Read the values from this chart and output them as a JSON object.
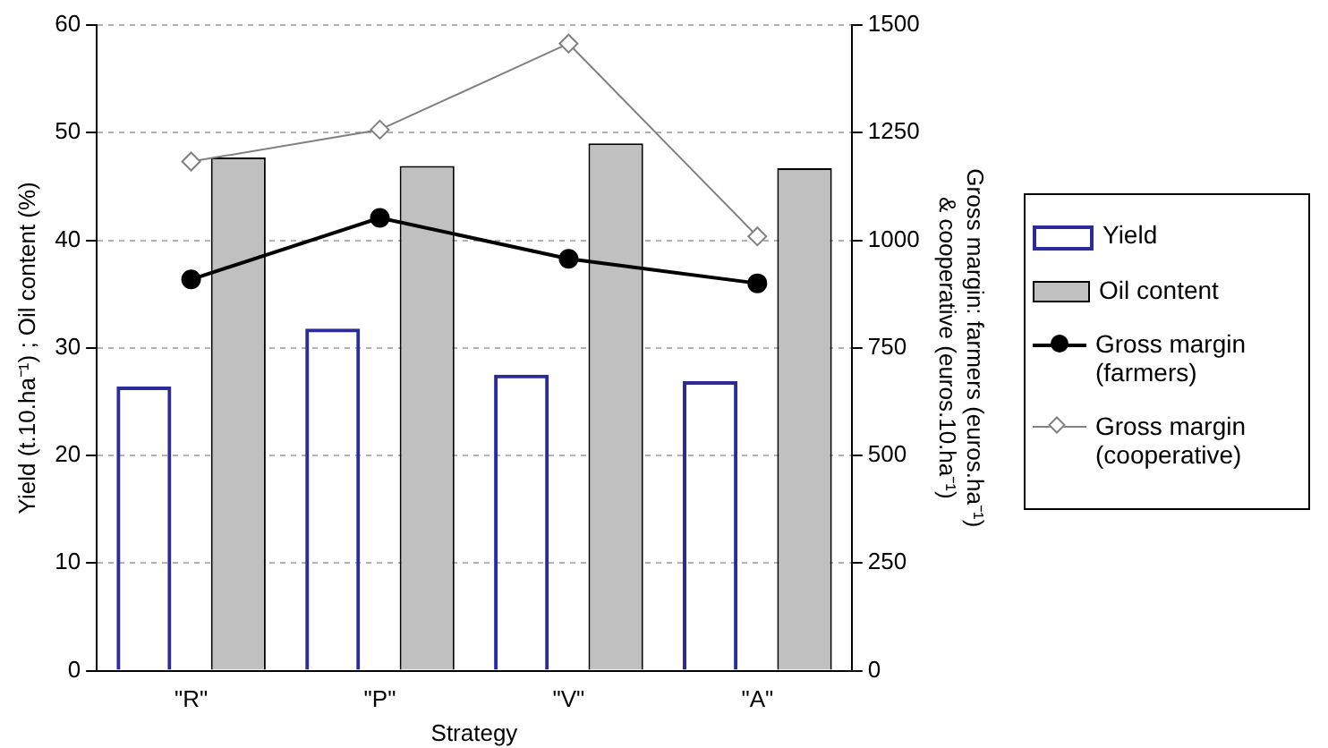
{
  "chart_data": {
    "type": "bar",
    "xlabel": "Strategy",
    "ylabel": "Yield (t.10.ha⁻¹) ; Oil content (%)",
    "y2label": "Gross margin: farmers (euros.ha⁻¹)\n& cooperative (euros.10.ha⁻¹)",
    "categories": [
      "\"R\"",
      "\"P\"",
      "\"V\"",
      "\"A\""
    ],
    "series": [
      {
        "name": "Yield",
        "type": "bar",
        "color": "#2b2b9c",
        "values": [
          26.4,
          31.8,
          27.5,
          26.9
        ]
      },
      {
        "name": "Oil content",
        "color": "#c0c0c0",
        "values": [
          47.7,
          46.9,
          49.0,
          46.7
        ]
      },
      {
        "name": "Gross margin (farmers)",
        "type": "line",
        "axis": "y2",
        "color": "#000000",
        "marker": "circle",
        "values": [
          909,
          1052,
          957,
          900
        ]
      },
      {
        "name": "Gross margin (cooperative)",
        "type": "line",
        "axis": "y2",
        "color": "#808080",
        "marker": "diamond",
        "values": [
          1183,
          1257,
          1457,
          1009
        ]
      }
    ],
    "ylim": [
      0,
      60
    ],
    "yticks": [
      0,
      10,
      20,
      30,
      40,
      50,
      60
    ],
    "y2lim": [
      0,
      1500
    ],
    "y2ticks": [
      0,
      250,
      500,
      750,
      1000,
      1250,
      1500
    ],
    "grid": "y",
    "legend": "right",
    "line_style": "solid"
  }
}
